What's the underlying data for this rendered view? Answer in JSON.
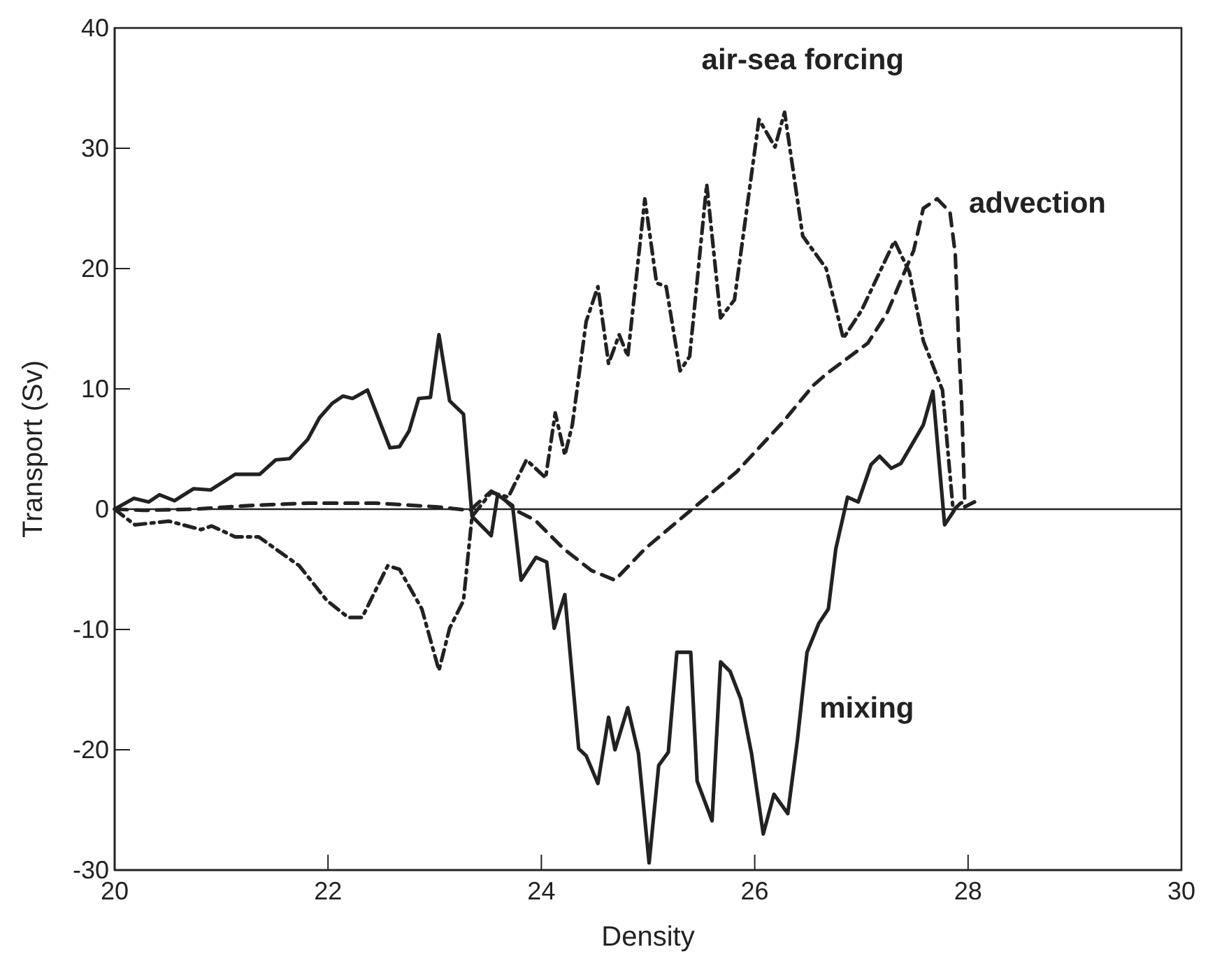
{
  "chart_data": {
    "type": "line",
    "xlabel": "Density",
    "ylabel": "Transport (Sv)",
    "xlim": [
      20,
      30
    ],
    "xticks": [
      20,
      22,
      24,
      26,
      28,
      30
    ],
    "ylim": [
      -30,
      40
    ],
    "yticks": [
      -30,
      -20,
      -10,
      0,
      10,
      20,
      30,
      40
    ],
    "grid": false,
    "marker": "none",
    "ref_lines": [
      {
        "axis": "y",
        "value": 0,
        "color": "#222222",
        "line_style": "solid"
      }
    ],
    "series": [
      {
        "name": "mixing",
        "color": "#222222",
        "line_style": "solid",
        "x": [
          20,
          20.18,
          20.32,
          20.42,
          20.56,
          20.74,
          20.9,
          21.13,
          21.36,
          21.51,
          21.64,
          21.81,
          21.92,
          22.04,
          22.14,
          22.23,
          22.37,
          22.58,
          22.67,
          22.76,
          22.85,
          22.96,
          23.04,
          23.14,
          23.27,
          23.35,
          23.53,
          23.59,
          23.73,
          23.81,
          23.95,
          24.05,
          24.12,
          24.22,
          24.35,
          24.42,
          24.53,
          24.63,
          24.69,
          24.81,
          24.91,
          25.01,
          25.1,
          25.19,
          25.27,
          25.4,
          25.46,
          25.6,
          25.68,
          25.77,
          25.87,
          25.97,
          26.08,
          26.18,
          26.31,
          26.4,
          26.49,
          26.6,
          26.69,
          26.76,
          26.87,
          26.97,
          27.09,
          27.17,
          27.28,
          27.37,
          27.58,
          27.67,
          27.78,
          27.87
        ],
        "values": [
          0,
          0.9,
          0.6,
          1.2,
          0.7,
          1.7,
          1.6,
          2.9,
          2.9,
          4.1,
          4.2,
          5.8,
          7.6,
          8.8,
          9.4,
          9.2,
          9.9,
          5.1,
          5.2,
          6.5,
          9.2,
          9.3,
          14.5,
          9,
          7.9,
          -0.6,
          -2.2,
          1.2,
          0.3,
          -5.9,
          -4,
          -4.4,
          -9.9,
          -7.1,
          -19.9,
          -20.5,
          -22.8,
          -17.3,
          -20,
          -16.5,
          -20.3,
          -29.4,
          -21.3,
          -20.2,
          -11.9,
          -11.9,
          -22.6,
          -25.9,
          -12.7,
          -13.5,
          -15.8,
          -20.3,
          -27,
          -23.7,
          -25.3,
          -19.2,
          -11.9,
          -9.5,
          -8.3,
          -3.3,
          1,
          0.6,
          3.7,
          4.4,
          3.4,
          3.8,
          7,
          9.8,
          -1.3,
          -0.1
        ]
      },
      {
        "name": "advection",
        "color": "#222222",
        "line_style": "dashed",
        "x": [
          20,
          20.27,
          20.74,
          21.26,
          21.81,
          22.45,
          23.01,
          23.33,
          23.53,
          23.63,
          23.76,
          23.94,
          24.21,
          24.47,
          24.69,
          24.97,
          25.4,
          25.83,
          26.26,
          26.55,
          26.68,
          27.06,
          27.24,
          27.49,
          27.58,
          27.71,
          27.83,
          27.88,
          27.91,
          27.94,
          27.97,
          28.06
        ],
        "values": [
          0,
          -0.1,
          0,
          0.3,
          0.5,
          0.5,
          0.2,
          -0.1,
          1.5,
          1,
          -0.1,
          -0.9,
          -3.3,
          -5.1,
          -5.9,
          -3.3,
          -0.1,
          3.1,
          7.2,
          10.3,
          11.3,
          13.8,
          16.3,
          21.5,
          25,
          25.8,
          24.7,
          21.2,
          14.2,
          8.7,
          0.2,
          0.6
        ]
      },
      {
        "name": "air-sea forcing",
        "color": "#222222",
        "line_style": "dashdot",
        "x": [
          20,
          20.1,
          20.19,
          20.51,
          20.81,
          20.91,
          21.13,
          21.35,
          21.73,
          21.99,
          22.19,
          22.32,
          22.56,
          22.67,
          22.88,
          23.04,
          23.14,
          23.27,
          23.35,
          23.53,
          23.69,
          23.86,
          24.04,
          24.13,
          24.22,
          24.29,
          24.42,
          24.53,
          24.63,
          24.73,
          24.81,
          24.97,
          25.08,
          25.17,
          25.3,
          25.39,
          25.55,
          25.68,
          25.81,
          26.04,
          26.19,
          26.28,
          26.45,
          26.67,
          26.83,
          27,
          27.31,
          27.45,
          27.58,
          27.76,
          27.86,
          27.93,
          27.97
        ],
        "values": [
          0,
          -0.7,
          -1.3,
          -1,
          -1.7,
          -1.4,
          -2.3,
          -2.3,
          -4.7,
          -7.6,
          -9,
          -9,
          -4.7,
          -5,
          -8.3,
          -13.4,
          -9.9,
          -7.6,
          -0.6,
          1.4,
          1,
          4.1,
          2.6,
          8,
          4.5,
          7,
          15.6,
          18.5,
          12.1,
          14.5,
          12.7,
          25.8,
          18.8,
          18.5,
          11.5,
          12.7,
          27,
          15.9,
          17.4,
          32.4,
          30.1,
          33,
          22.7,
          20,
          14.2,
          16.5,
          22.3,
          19.7,
          14,
          9.9,
          -0.1,
          0.5,
          0.6
        ]
      }
    ]
  }
}
